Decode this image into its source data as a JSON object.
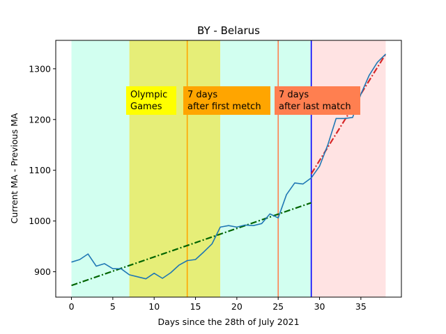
{
  "chart_data": {
    "type": "line",
    "title": "BY - Belarus",
    "xlabel": "Days since the 28th of July 2021",
    "ylabel": "Current MA - Previous MA",
    "xlim": [
      -1.9,
      39.9
    ],
    "ylim": [
      850,
      1356
    ],
    "xticks": [
      0,
      5,
      10,
      15,
      20,
      25,
      30,
      35
    ],
    "yticks": [
      900,
      1000,
      1100,
      1200,
      1300
    ],
    "grid": false,
    "legend": "none",
    "colors": {
      "series": "#1f77b4",
      "fit_before": "#006400",
      "fit_after": "#d62728",
      "period_before": "#d2fff0",
      "period_games": "#e6ee78",
      "period_after": "#ffe3e3",
      "line_first_match": "#ffa500",
      "line_last_match": "#ff7f50",
      "line_cutoff": "#0000ff",
      "box_olympic": "#ffff00",
      "box_first": "#ffa500",
      "box_last": "#ff7f50"
    },
    "shaded_regions": [
      {
        "x0": 0,
        "x1": 7,
        "kind": "before"
      },
      {
        "x0": 7,
        "x1": 18,
        "kind": "games"
      },
      {
        "x0": 18,
        "x1": 29,
        "kind": "before"
      },
      {
        "x0": 29,
        "x1": 38,
        "kind": "after"
      }
    ],
    "vertical_lines": [
      {
        "x": 14,
        "kind": "first_match"
      },
      {
        "x": 25,
        "kind": "last_match"
      },
      {
        "x": 29,
        "kind": "cutoff"
      }
    ],
    "series": [
      {
        "x": [
          0,
          1,
          2,
          3,
          4,
          5,
          6,
          7,
          8,
          9,
          10,
          11,
          12,
          13,
          14,
          15,
          16,
          17,
          18,
          19,
          20,
          21,
          22,
          23,
          24,
          25,
          26,
          27,
          28,
          29,
          30,
          31,
          32,
          33,
          34,
          35,
          36,
          37,
          38
        ],
        "values": [
          919,
          924,
          935,
          911,
          916,
          906,
          906,
          894,
          890,
          886,
          897,
          887,
          898,
          913,
          922,
          924,
          939,
          955,
          988,
          991,
          988,
          992,
          991,
          995,
          1014,
          1006,
          1052,
          1075,
          1073,
          1085,
          1108,
          1150,
          1202,
          1202,
          1204,
          1250,
          1287,
          1313,
          1329
        ]
      }
    ],
    "trend_lines": [
      {
        "kind": "fit_before",
        "x": [
          0,
          29
        ],
        "y": [
          873,
          1036
        ]
      },
      {
        "kind": "fit_after",
        "x": [
          29,
          38
        ],
        "y": [
          1093,
          1329
        ]
      }
    ],
    "annotations": [
      {
        "id": "olympic",
        "lines": [
          "Olympic",
          "Games"
        ]
      },
      {
        "id": "first",
        "lines": [
          "7 days",
          "after first metch"
        ]
      },
      {
        "id": "last",
        "lines": [
          "7 days",
          "after last match"
        ]
      }
    ]
  }
}
